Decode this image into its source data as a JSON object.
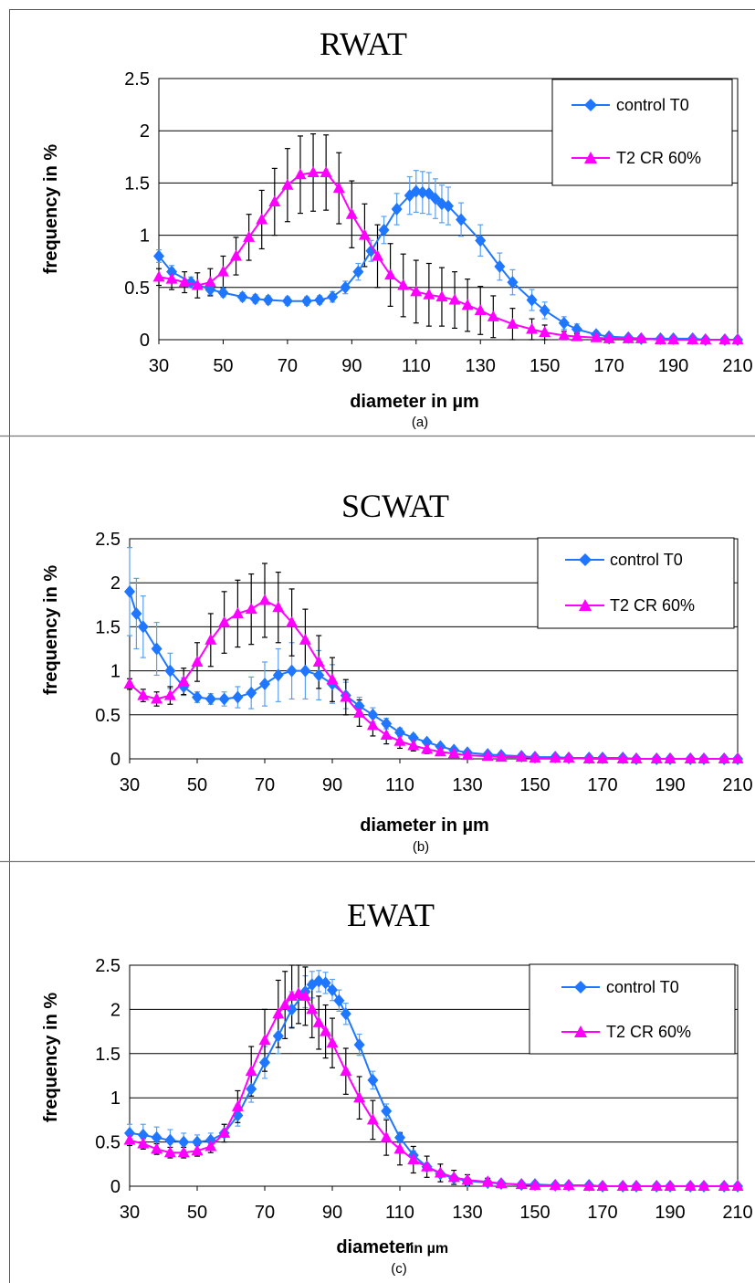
{
  "figure": {
    "panels": [
      {
        "caption": "(a)"
      },
      {
        "caption": "(b)"
      },
      {
        "caption": "(c)"
      }
    ]
  },
  "colors": {
    "control": "#1f77ff",
    "control_err": "#5aa0f0",
    "cr": "#ff00ff",
    "cr_err": "#000000"
  },
  "chart_data": [
    {
      "type": "line",
      "title": "RWAT",
      "xlabel": "diameter in µm",
      "ylabel": "frequency in  %",
      "xlim": [
        30,
        210
      ],
      "ylim": [
        0,
        2.5
      ],
      "xticks": [
        "30",
        "50",
        "70",
        "90",
        "110",
        "130",
        "150",
        "170",
        "190",
        "210"
      ],
      "yticks": [
        "0",
        "0.5",
        "1",
        "1.5",
        "2",
        "2.5"
      ],
      "legend_position": "top-right",
      "grid": "horizontal",
      "series": [
        {
          "name": "control T0",
          "marker": "diamond",
          "x": [
            30,
            34,
            40,
            46,
            50,
            56,
            60,
            64,
            70,
            76,
            80,
            84,
            88,
            92,
            96,
            100,
            104,
            108,
            110,
            112,
            114,
            116,
            118,
            120,
            124,
            130,
            136,
            140,
            146,
            150,
            156,
            160,
            166,
            170,
            176,
            180,
            186,
            190,
            196,
            200,
            206,
            210
          ],
          "y": [
            0.8,
            0.65,
            0.55,
            0.48,
            0.45,
            0.41,
            0.39,
            0.38,
            0.37,
            0.37,
            0.38,
            0.41,
            0.5,
            0.65,
            0.85,
            1.05,
            1.25,
            1.38,
            1.42,
            1.41,
            1.4,
            1.35,
            1.3,
            1.28,
            1.15,
            0.95,
            0.7,
            0.55,
            0.38,
            0.28,
            0.16,
            0.1,
            0.05,
            0.03,
            0.02,
            0.01,
            0.01,
            0.01,
            0.01,
            0.0,
            0.0,
            0.0
          ],
          "err": [
            0.06,
            0.06,
            0.05,
            0.05,
            0.04,
            0.04,
            0.04,
            0.04,
            0.04,
            0.04,
            0.04,
            0.05,
            0.06,
            0.08,
            0.1,
            0.13,
            0.15,
            0.18,
            0.2,
            0.2,
            0.2,
            0.19,
            0.18,
            0.18,
            0.16,
            0.15,
            0.13,
            0.12,
            0.1,
            0.08,
            0.06,
            0.05,
            0.03,
            0.02,
            0.02,
            0.01,
            0.01,
            0.01,
            0.01,
            0.0,
            0.0,
            0.0
          ]
        },
        {
          "name": "T2 CR 60%",
          "marker": "triangle",
          "x": [
            30,
            34,
            38,
            42,
            46,
            50,
            54,
            58,
            62,
            66,
            70,
            74,
            78,
            82,
            86,
            90,
            94,
            98,
            102,
            106,
            110,
            114,
            118,
            122,
            126,
            130,
            134,
            140,
            146,
            150,
            156,
            160,
            166,
            170,
            176,
            180,
            186,
            190,
            196,
            200,
            206,
            210
          ],
          "y": [
            0.6,
            0.58,
            0.55,
            0.52,
            0.55,
            0.65,
            0.8,
            0.98,
            1.15,
            1.32,
            1.48,
            1.58,
            1.6,
            1.6,
            1.45,
            1.2,
            1.0,
            0.8,
            0.62,
            0.52,
            0.46,
            0.43,
            0.41,
            0.38,
            0.33,
            0.28,
            0.22,
            0.15,
            0.1,
            0.07,
            0.04,
            0.03,
            0.02,
            0.01,
            0.01,
            0.01,
            0.0,
            0.0,
            0.0,
            0.0,
            0.0,
            0.0
          ],
          "err": [
            0.08,
            0.1,
            0.1,
            0.12,
            0.13,
            0.15,
            0.18,
            0.22,
            0.28,
            0.32,
            0.35,
            0.37,
            0.37,
            0.36,
            0.34,
            0.32,
            0.3,
            0.3,
            0.3,
            0.3,
            0.3,
            0.3,
            0.28,
            0.27,
            0.25,
            0.23,
            0.2,
            0.15,
            0.1,
            0.07,
            0.04,
            0.03,
            0.02,
            0.01,
            0.01,
            0.01,
            0.0,
            0.0,
            0.0,
            0.0,
            0.0,
            0.0
          ]
        }
      ]
    },
    {
      "type": "line",
      "title": "SCWAT",
      "xlabel": "diameter in µm",
      "ylabel": "frequency in %",
      "xlim": [
        30,
        210
      ],
      "ylim": [
        0,
        2.5
      ],
      "xticks": [
        "30",
        "50",
        "70",
        "90",
        "110",
        "130",
        "150",
        "170",
        "190",
        "210"
      ],
      "yticks": [
        "0",
        "0.5",
        "1",
        "1.5",
        "2",
        "2.5"
      ],
      "legend_position": "top-right",
      "grid": "horizontal",
      "series": [
        {
          "name": "control T0",
          "marker": "diamond",
          "x": [
            30,
            32,
            34,
            38,
            42,
            46,
            50,
            54,
            58,
            62,
            66,
            70,
            74,
            78,
            82,
            86,
            90,
            94,
            98,
            102,
            106,
            110,
            114,
            118,
            122,
            126,
            130,
            136,
            140,
            146,
            150,
            156,
            160,
            166,
            170,
            176,
            180,
            186,
            190,
            196,
            200,
            206,
            210
          ],
          "y": [
            1.9,
            1.65,
            1.5,
            1.25,
            1.0,
            0.82,
            0.7,
            0.68,
            0.68,
            0.7,
            0.75,
            0.85,
            0.95,
            1.0,
            1.0,
            0.95,
            0.85,
            0.72,
            0.6,
            0.5,
            0.4,
            0.3,
            0.24,
            0.19,
            0.14,
            0.1,
            0.07,
            0.05,
            0.04,
            0.03,
            0.02,
            0.02,
            0.01,
            0.01,
            0.01,
            0.01,
            0.0,
            0.0,
            0.0,
            0.0,
            0.0,
            0.0,
            0.0
          ],
          "err": [
            0.5,
            0.4,
            0.35,
            0.3,
            0.2,
            0.1,
            0.06,
            0.06,
            0.08,
            0.12,
            0.18,
            0.25,
            0.3,
            0.32,
            0.32,
            0.28,
            0.22,
            0.15,
            0.1,
            0.08,
            0.06,
            0.05,
            0.04,
            0.03,
            0.03,
            0.02,
            0.02,
            0.01,
            0.01,
            0.01,
            0.01,
            0.01,
            0.0,
            0.0,
            0.0,
            0.0,
            0.0,
            0.0,
            0.0,
            0.0,
            0.0,
            0.0,
            0.0
          ]
        },
        {
          "name": "T2 CR 60%",
          "marker": "triangle",
          "x": [
            30,
            34,
            38,
            42,
            46,
            50,
            54,
            58,
            62,
            66,
            70,
            74,
            78,
            82,
            86,
            90,
            94,
            98,
            102,
            106,
            110,
            114,
            118,
            122,
            126,
            130,
            136,
            140,
            146,
            150,
            156,
            160,
            166,
            170,
            176,
            180,
            186,
            190,
            196,
            200,
            206,
            210
          ],
          "y": [
            0.85,
            0.72,
            0.68,
            0.72,
            0.88,
            1.1,
            1.35,
            1.55,
            1.65,
            1.7,
            1.8,
            1.72,
            1.55,
            1.35,
            1.1,
            0.9,
            0.7,
            0.52,
            0.38,
            0.27,
            0.2,
            0.15,
            0.11,
            0.08,
            0.06,
            0.04,
            0.03,
            0.02,
            0.02,
            0.01,
            0.01,
            0.01,
            0.0,
            0.0,
            0.0,
            0.0,
            0.0,
            0.0,
            0.0,
            0.0,
            0.0,
            0.0
          ],
          "err": [
            0.06,
            0.07,
            0.08,
            0.1,
            0.15,
            0.22,
            0.3,
            0.35,
            0.38,
            0.4,
            0.42,
            0.4,
            0.38,
            0.35,
            0.3,
            0.25,
            0.2,
            0.15,
            0.12,
            0.1,
            0.08,
            0.06,
            0.05,
            0.04,
            0.03,
            0.02,
            0.02,
            0.01,
            0.01,
            0.01,
            0.01,
            0.0,
            0.0,
            0.0,
            0.0,
            0.0,
            0.0,
            0.0,
            0.0,
            0.0,
            0.0,
            0.0
          ]
        }
      ]
    },
    {
      "type": "line",
      "title": "EWAT",
      "xlabel": "diameter",
      "xlabel_suffix": "in µm",
      "ylabel": "frequency in %",
      "xlim": [
        30,
        210
      ],
      "ylim": [
        0,
        2.5
      ],
      "xticks": [
        "30",
        "50",
        "70",
        "90",
        "110",
        "130",
        "150",
        "170",
        "190",
        "210"
      ],
      "yticks": [
        "0",
        "0.5",
        "1",
        "1.5",
        "2",
        "2.5"
      ],
      "legend_position": "top-right",
      "grid": "horizontal",
      "series": [
        {
          "name": "control T0",
          "marker": "diamond",
          "x": [
            30,
            34,
            38,
            42,
            46,
            50,
            54,
            58,
            62,
            66,
            70,
            74,
            78,
            82,
            84,
            86,
            88,
            90,
            92,
            94,
            98,
            102,
            106,
            110,
            114,
            118,
            122,
            126,
            130,
            136,
            140,
            146,
            150,
            156,
            160,
            166,
            170,
            176,
            180,
            186,
            190,
            196,
            200,
            206,
            210
          ],
          "y": [
            0.6,
            0.58,
            0.55,
            0.52,
            0.5,
            0.5,
            0.52,
            0.6,
            0.8,
            1.1,
            1.4,
            1.7,
            2.0,
            2.2,
            2.28,
            2.32,
            2.3,
            2.22,
            2.1,
            1.95,
            1.6,
            1.2,
            0.85,
            0.55,
            0.35,
            0.22,
            0.14,
            0.09,
            0.06,
            0.04,
            0.03,
            0.02,
            0.02,
            0.01,
            0.01,
            0.01,
            0.0,
            0.0,
            0.0,
            0.0,
            0.0,
            0.0,
            0.0,
            0.0,
            0.0
          ],
          "err": [
            0.1,
            0.12,
            0.12,
            0.12,
            0.1,
            0.08,
            0.08,
            0.1,
            0.12,
            0.15,
            0.18,
            0.2,
            0.2,
            0.18,
            0.15,
            0.12,
            0.12,
            0.12,
            0.12,
            0.12,
            0.12,
            0.1,
            0.08,
            0.06,
            0.05,
            0.04,
            0.03,
            0.02,
            0.02,
            0.01,
            0.01,
            0.01,
            0.01,
            0.0,
            0.0,
            0.0,
            0.0,
            0.0,
            0.0,
            0.0,
            0.0,
            0.0,
            0.0,
            0.0,
            0.0
          ]
        },
        {
          "name": "T2 CR 60%",
          "marker": "triangle",
          "x": [
            30,
            34,
            38,
            42,
            46,
            50,
            54,
            58,
            62,
            66,
            70,
            74,
            76,
            78,
            80,
            82,
            84,
            86,
            88,
            90,
            94,
            98,
            102,
            106,
            110,
            114,
            118,
            122,
            126,
            130,
            136,
            140,
            146,
            150,
            156,
            160,
            166,
            170,
            176,
            180,
            186,
            190,
            196,
            200,
            206,
            210
          ],
          "y": [
            0.52,
            0.48,
            0.42,
            0.38,
            0.38,
            0.4,
            0.45,
            0.6,
            0.9,
            1.3,
            1.65,
            1.95,
            2.05,
            2.15,
            2.18,
            2.15,
            2.0,
            1.85,
            1.75,
            1.62,
            1.3,
            1.0,
            0.75,
            0.55,
            0.42,
            0.3,
            0.22,
            0.15,
            0.1,
            0.07,
            0.05,
            0.03,
            0.02,
            0.01,
            0.01,
            0.01,
            0.0,
            0.0,
            0.0,
            0.0,
            0.0,
            0.0,
            0.0,
            0.0,
            0.0,
            0.0
          ],
          "err": [
            0.06,
            0.06,
            0.06,
            0.06,
            0.06,
            0.06,
            0.07,
            0.1,
            0.18,
            0.28,
            0.35,
            0.38,
            0.38,
            0.36,
            0.34,
            0.33,
            0.32,
            0.3,
            0.3,
            0.28,
            0.26,
            0.24,
            0.22,
            0.2,
            0.18,
            0.15,
            0.12,
            0.1,
            0.08,
            0.06,
            0.04,
            0.03,
            0.02,
            0.01,
            0.01,
            0.01,
            0.0,
            0.0,
            0.0,
            0.0,
            0.0,
            0.0,
            0.0,
            0.0,
            0.0,
            0.0
          ]
        }
      ]
    }
  ]
}
